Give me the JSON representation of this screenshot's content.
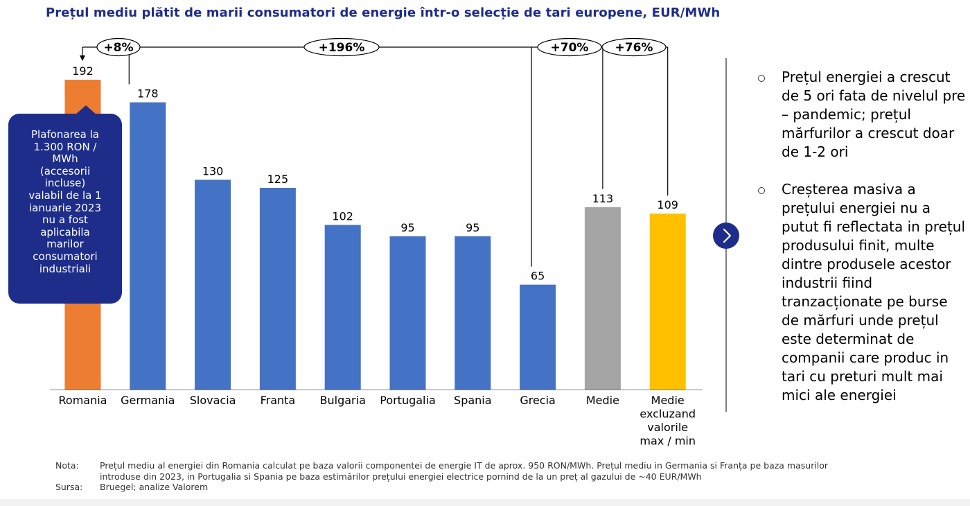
{
  "title": "Prețul mediu plătit de marii consumatori de energie într-o selecție de tari europene, EUR/MWh",
  "chart_data": {
    "type": "bar",
    "categories": [
      "Romania",
      "Germania",
      "Slovacia",
      "Franta",
      "Bulgaria",
      "Portugalia",
      "Spania",
      "Grecia",
      "Medie",
      "Medie excluzand valorile max / min"
    ],
    "values": [
      192,
      178,
      130,
      125,
      102,
      95,
      95,
      65,
      113,
      109
    ],
    "colors": [
      "#ed7d31",
      "#4472c4",
      "#4472c4",
      "#4472c4",
      "#4472c4",
      "#4472c4",
      "#4472c4",
      "#4472c4",
      "#a5a5a5",
      "#ffc000"
    ],
    "ylim": [
      0,
      192
    ],
    "grid": false,
    "annotations": [
      {
        "label": "+8%",
        "from": "Germania",
        "to": "Romania"
      },
      {
        "label": "+196%",
        "from": "Grecia",
        "to": "Romania"
      },
      {
        "label": "+70%",
        "from": "Medie",
        "to": "Romania"
      },
      {
        "label": "+76%",
        "from": "Medie excluzand valorile max / min",
        "to": "Romania"
      }
    ]
  },
  "callout": {
    "lines": [
      "Plafonarea la",
      "1.300 RON /",
      "MWh",
      "(accesorii",
      "incluse)",
      "valabil de la 1",
      "ianuarie 2023",
      "nu a fost",
      "aplicabila",
      "marilor",
      "consumatori",
      "industriali"
    ]
  },
  "bullets": [
    "Prețul energiei a crescut de 5 ori fata de nivelul pre – pandemic; prețul mărfurilor a crescut doar de 1-2 ori",
    "Creșterea masiva a prețului energiei nu a putut fi reflectata in prețul produsului finit, multe dintre produsele acestor industrii fiind tranzacționate pe burse de mărfuri unde prețul este determinat de companii care produc in tari cu preturi mult mai mici ale energiei"
  ],
  "notes": [
    {
      "label": "Nota:",
      "text": "Prețul mediu al energiei din Romania calculat pe baza valorii componentei de energie IT de aprox. 950 RON/MWh. Prețul mediu in Germania si Franța pe baza masurilor introduse din 2023, in Portugalia si Spania pe baza estimărilor prețului energiei electrice pornind de la un preț al gazului de ~40 EUR/MWh"
    },
    {
      "label": "Sursa:",
      "text": "Bruegel; analize Valorem"
    }
  ],
  "icons": {
    "arrow": "chevron-right-icon",
    "bullet": "circle-bullet-icon"
  }
}
